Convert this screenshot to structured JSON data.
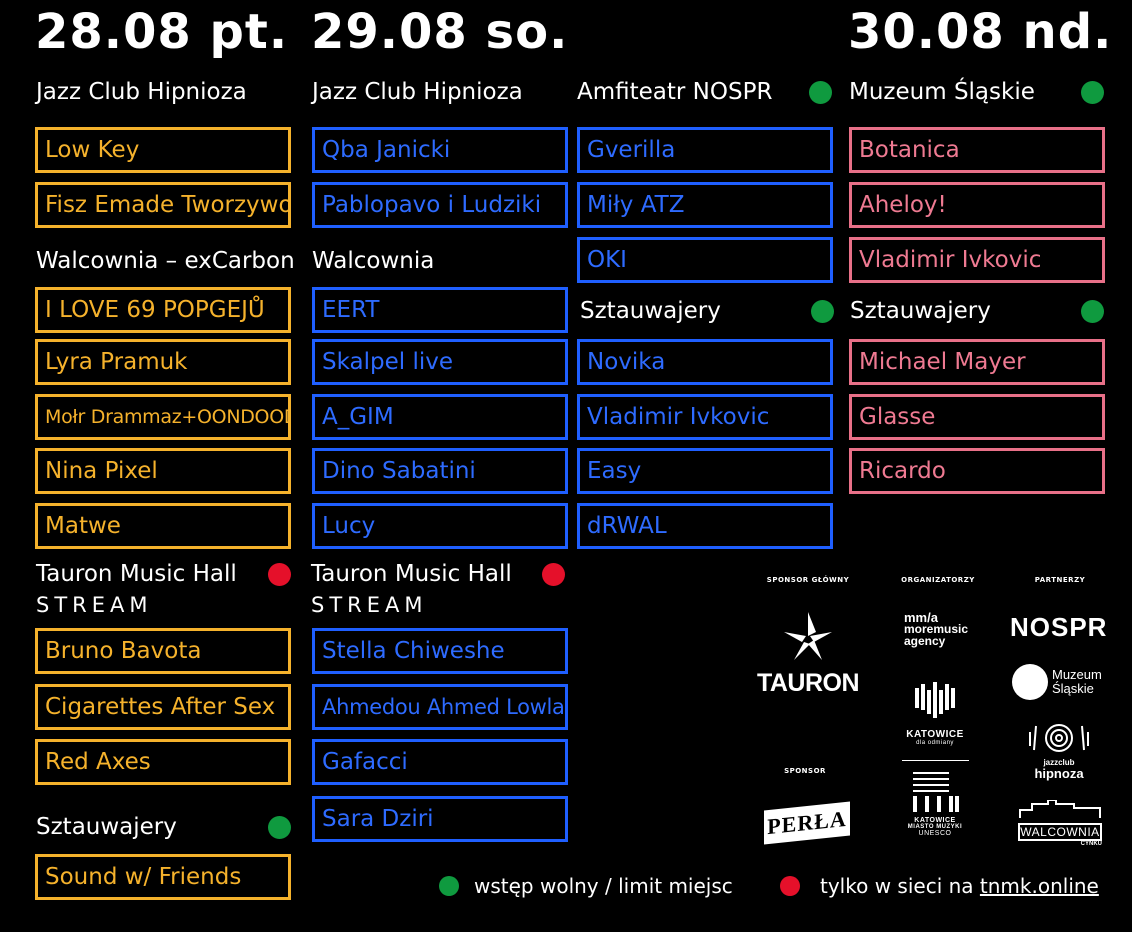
{
  "days": [
    {
      "date": "28.08 pt."
    },
    {
      "date": "29.08 so."
    },
    {
      "date": "30.08 nd."
    }
  ],
  "col1": {
    "v1": "Jazz Club Hipnioza",
    "v1_items": [
      "Low Key",
      "Fisz Emade Tworzywo"
    ],
    "v2": "Walcownia – exCarbon",
    "v2_items": [
      "I LOVE 69 POPGEJŮ",
      "Lyra Pramuk",
      "Mołr Drammaz+OONDOOD",
      "Nina Pixel",
      "Matwe"
    ],
    "v3": "Tauron Music Hall",
    "v3_stream": "STREAM",
    "v3_items": [
      "Bruno Bavota",
      "Cigarettes After Sex",
      "Red Axes"
    ],
    "v4": "Sztauwajery",
    "v4_items": [
      "Sound w/ Friends"
    ]
  },
  "col2": {
    "v1": "Jazz Club Hipnioza",
    "v1_items": [
      "Qba Janicki",
      "Pablopavo i Ludziki"
    ],
    "v2": "Walcownia",
    "v2_items": [
      "EERT",
      "Skalpel live",
      "A_GIM",
      "Dino Sabatini",
      "Lucy"
    ],
    "v3": "Tauron Music Hall",
    "v3_stream": "STREAM",
    "v3_items": [
      "Stella Chiweshe",
      "Ahmedou Ahmed Lowla",
      "Gafacci",
      "Sara Dziri"
    ]
  },
  "col3": {
    "v1": "Amfiteatr NOSPR",
    "v1_items": [
      "Gverilla",
      "Miły ATZ",
      "OKI"
    ],
    "v2": "Sztauwajery",
    "v2_items": [
      "Novika",
      "Vladimir Ivkovic",
      "Easy",
      "dRWAL"
    ]
  },
  "col4": {
    "v1": "Muzeum Śląskie",
    "v1_items": [
      "Botanica",
      "Aheloy!",
      "Vladimir Ivkovic"
    ],
    "v2": "Sztauwajery",
    "v2_items": [
      "Michael Mayer",
      "Glasse",
      "Ricardo"
    ]
  },
  "sponsors": {
    "main_label": "SPONSOR GŁÓWNY",
    "org_label": "ORGANIZATORZY",
    "partners_label": "PARTNERZY",
    "sponsor_label": "SPONSOR",
    "tauron": "TAURON",
    "mma_1": "mm/a",
    "mma_2": "moremusic",
    "mma_3": "agency",
    "nospr": "NOSPR",
    "muzeum_1": "Muzeum",
    "muzeum_2": "Śląskie",
    "katowice": "KATOWICE",
    "katowice_sub": "dla odmiany",
    "jazz_1": "jazzclub",
    "jazz_2": "hipnoza",
    "perla": "PERŁA",
    "unesco_1": "KATOWICE",
    "unesco_2": "MIASTO MUZYKI",
    "unesco_3": "UNESCO",
    "walcownia": "WALCOWNIA",
    "walcownia_sub": "CYNKU"
  },
  "legend": {
    "free": "wstęp wolny / limit miejsc",
    "online_prefix": "tylko w sieci na ",
    "online_link": "tnmk.online"
  },
  "colors": {
    "yellow": "#f5b22c",
    "blue": "#1f5fff",
    "pink": "#e87088",
    "green": "#0f9a3f",
    "red": "#e5102a"
  }
}
